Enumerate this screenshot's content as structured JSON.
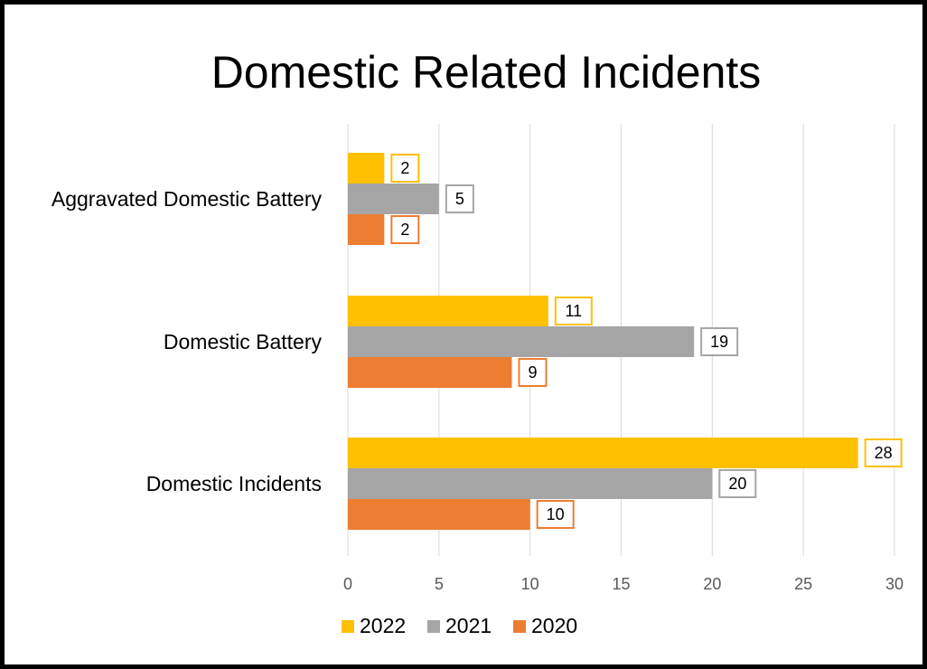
{
  "chart_data": {
    "type": "bar",
    "orientation": "horizontal",
    "title": "Domestic Related Incidents",
    "categories": [
      "Aggravated Domestic Battery",
      "Domestic Battery",
      "Domestic Incidents"
    ],
    "series": [
      {
        "name": "2022",
        "color": "#FFC000",
        "values": [
          2,
          11,
          28
        ]
      },
      {
        "name": "2021",
        "color": "#A5A5A5",
        "values": [
          5,
          19,
          20
        ]
      },
      {
        "name": "2020",
        "color": "#ED7D31",
        "values": [
          2,
          9,
          10
        ]
      }
    ],
    "xlim": [
      0,
      30
    ],
    "xticks": [
      0,
      5,
      10,
      15,
      20,
      25,
      30
    ],
    "grid": true,
    "data_labels": true,
    "legend_position": "bottom"
  }
}
